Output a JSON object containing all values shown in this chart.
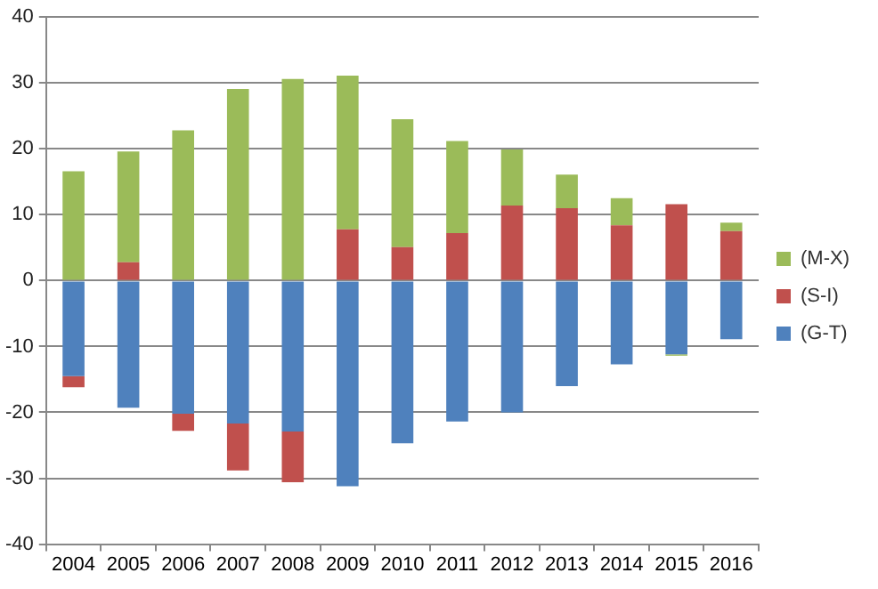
{
  "chart_data": {
    "type": "bar",
    "stacked": true,
    "categories": [
      "2004",
      "2005",
      "2006",
      "2007",
      "2008",
      "2009",
      "2010",
      "2011",
      "2012",
      "2013",
      "2014",
      "2015",
      "2016"
    ],
    "series": [
      {
        "name": "(G-T)",
        "color": "#4f81bd",
        "values": [
          -14.5,
          -19.3,
          -20.2,
          -21.7,
          -22.9,
          -31.2,
          -24.7,
          -21.4,
          -20.0,
          -16.0,
          -12.7,
          -11.2,
          -8.9
        ]
      },
      {
        "name": "(S-I)",
        "color": "#c0504d",
        "values": [
          -1.7,
          2.8,
          -2.6,
          -7.1,
          -7.7,
          7.8,
          5.1,
          7.2,
          11.4,
          11.0,
          8.4,
          11.6,
          7.5
        ]
      },
      {
        "name": "(M-X)",
        "color": "#9bbb59",
        "values": [
          16.6,
          16.8,
          22.8,
          29.1,
          30.6,
          23.3,
          19.4,
          14.0,
          8.5,
          5.1,
          4.1,
          -0.2,
          1.3
        ]
      }
    ],
    "ylim": [
      -40,
      40
    ],
    "yticks": [
      -40,
      -30,
      -20,
      -10,
      0,
      10,
      20,
      30,
      40
    ],
    "grid": "y",
    "legend": "right"
  }
}
